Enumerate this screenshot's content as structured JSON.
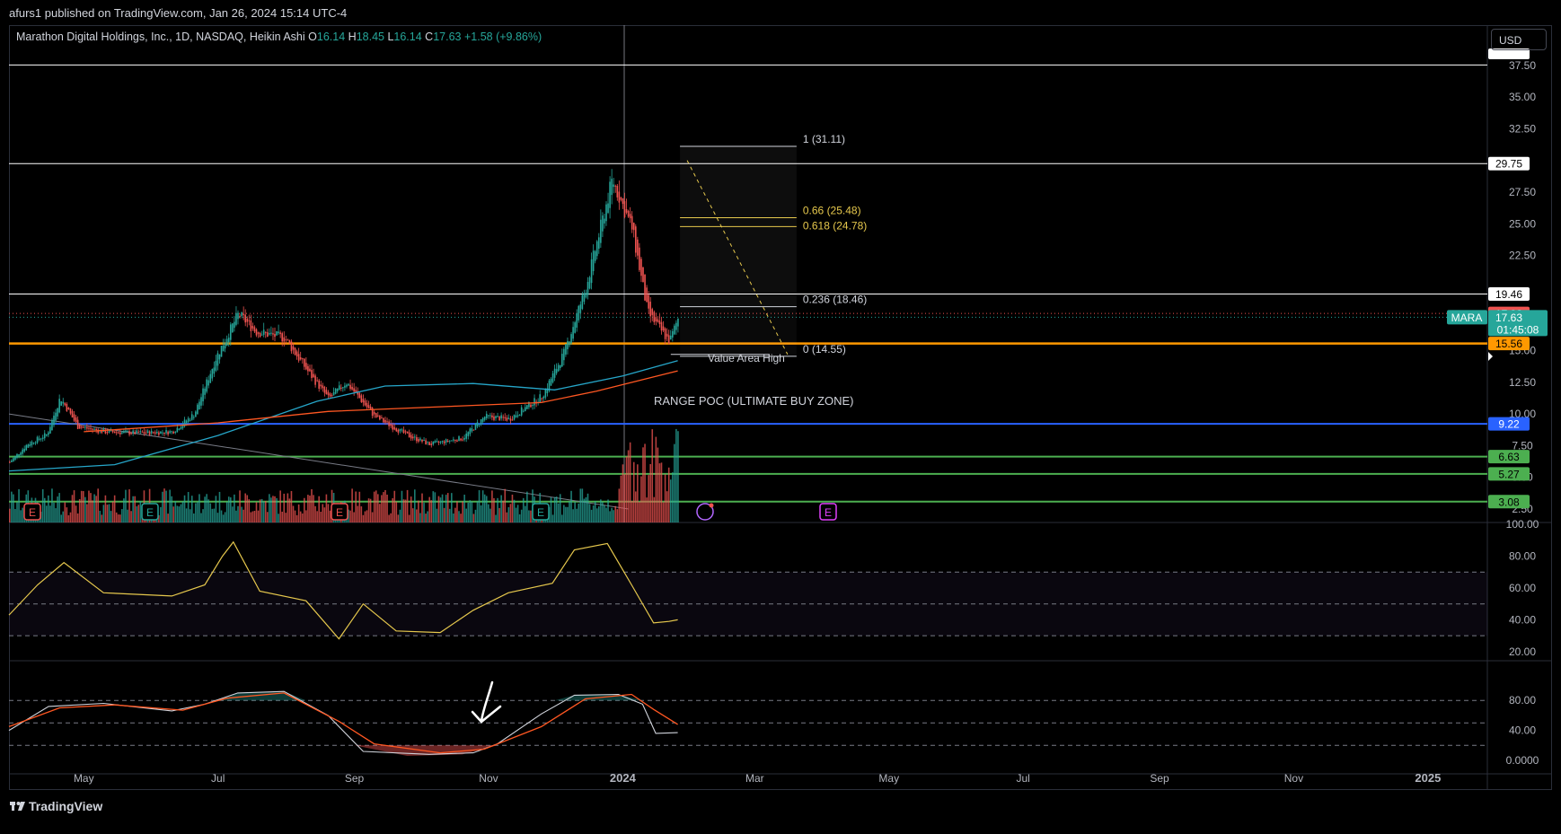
{
  "header": {
    "publisher": "afurs1 published on TradingView.com, Jan 26, 2024 15:14 UTC-4"
  },
  "legend": {
    "title": "Marathon Digital Holdings, Inc., 1D, NASDAQ, Heikin Ashi",
    "o_label": "O",
    "o": "16.14",
    "h_label": "H",
    "h": "18.45",
    "l_label": "L",
    "l": "16.14",
    "c_label": "C",
    "c": "17.63",
    "change": "+1.58 (+9.86%)"
  },
  "currency_button": "USD",
  "footer": {
    "brand": "TradingView",
    "logo_icon": "tradingview-logo-icon"
  },
  "colors": {
    "up": "#26a69a",
    "down": "#ef5350",
    "rsi": "#e6c84d",
    "orange": "#ff9800",
    "blue": "#2962ff",
    "green": "#4caf50",
    "fib": "#e6c84d",
    "stoch_k": "#d1d4dc",
    "stoch_d": "#ff5722"
  },
  "chart_data": [
    {
      "type": "candlestick",
      "title": "Marathon Digital Holdings, Inc., 1D, NASDAQ, Heikin Ashi",
      "symbol": "MARA",
      "x_ticks": [
        "May",
        "Jul",
        "Sep",
        "Nov",
        "2024",
        "Mar",
        "May",
        "Jul",
        "Sep",
        "Nov",
        "2025"
      ],
      "y_ticks": [
        "2.50",
        "5.00",
        "7.50",
        "10.00",
        "12.50",
        "15.00",
        "17.50",
        "22.50",
        "25.00",
        "27.50",
        "32.50",
        "35.00",
        "37.50"
      ],
      "ylim": [
        2.5,
        37.5
      ],
      "close_series": [
        {
          "date": "2023-03-28",
          "value": 6.2
        },
        {
          "date": "2023-04-05",
          "value": 7.6
        },
        {
          "date": "2023-04-14",
          "value": 8.4
        },
        {
          "date": "2023-04-20",
          "value": 11.3
        },
        {
          "date": "2023-04-28",
          "value": 9.0
        },
        {
          "date": "2023-05-10",
          "value": 8.6
        },
        {
          "date": "2023-05-25",
          "value": 8.5
        },
        {
          "date": "2023-06-10",
          "value": 8.6
        },
        {
          "date": "2023-06-20",
          "value": 10.0
        },
        {
          "date": "2023-06-30",
          "value": 14.5
        },
        {
          "date": "2023-07-10",
          "value": 17.9
        },
        {
          "date": "2023-07-18",
          "value": 16.5
        },
        {
          "date": "2023-07-31",
          "value": 16.0
        },
        {
          "date": "2023-08-10",
          "value": 13.5
        },
        {
          "date": "2023-08-20",
          "value": 11.2
        },
        {
          "date": "2023-08-28",
          "value": 12.5
        },
        {
          "date": "2023-09-10",
          "value": 9.8
        },
        {
          "date": "2023-09-25",
          "value": 8.3
        },
        {
          "date": "2023-10-05",
          "value": 7.6
        },
        {
          "date": "2023-10-20",
          "value": 8.1
        },
        {
          "date": "2023-10-30",
          "value": 9.8
        },
        {
          "date": "2023-11-10",
          "value": 9.6
        },
        {
          "date": "2023-11-25",
          "value": 11.4
        },
        {
          "date": "2023-12-05",
          "value": 14.8
        },
        {
          "date": "2023-12-15",
          "value": 20.0
        },
        {
          "date": "2023-12-27",
          "value": 28.5
        },
        {
          "date": "2024-01-05",
          "value": 24.6
        },
        {
          "date": "2024-01-12",
          "value": 18.0
        },
        {
          "date": "2024-01-22",
          "value": 15.7
        },
        {
          "date": "2024-01-26",
          "value": 17.63
        }
      ],
      "horizontal_levels": [
        {
          "value": 37.53,
          "color": "#ffffff"
        },
        {
          "value": 29.75,
          "color": "#ffffff"
        },
        {
          "value": 19.46,
          "color": "#ffffff"
        },
        {
          "value": 17.93,
          "color": "#ef5350"
        },
        {
          "value": 15.56,
          "color": "#ff9800"
        },
        {
          "value": 9.22,
          "color": "#2962ff"
        },
        {
          "value": 6.63,
          "color": "#4caf50"
        },
        {
          "value": 5.27,
          "color": "#4caf50"
        },
        {
          "value": 3.08,
          "color": "#4caf50"
        }
      ],
      "price_labels": [
        "29.75",
        "19.46",
        "17.93",
        "15.56",
        "9.22",
        "6.63",
        "5.27",
        "3.08"
      ],
      "last_price": {
        "symbol": "MARA",
        "value": "17.63",
        "countdown": "01:45:08"
      },
      "fibonacci": [
        {
          "label": "1 (31.11)",
          "value": 31.11
        },
        {
          "label": "0.66 (25.48)",
          "value": 25.48
        },
        {
          "label": "0.618 (24.78)",
          "value": 24.78
        },
        {
          "label": "0.236 (18.46)",
          "value": 18.46
        },
        {
          "label": "0 (14.55)",
          "value": 14.55
        }
      ],
      "annotations": [
        "RANGE POC (ULTIMATE BUY ZONE)",
        "Value Area High"
      ],
      "earnings_markers": [
        "E",
        "E",
        "E",
        "E",
        "E"
      ]
    },
    {
      "type": "line",
      "name": "RSI",
      "y_ticks": [
        "100.00",
        "80.00",
        "60.00",
        "40.00",
        "20.00"
      ],
      "ylim": [
        15,
        100
      ],
      "bands": [
        70,
        50,
        30
      ]
    },
    {
      "type": "line",
      "name": "Stochastic",
      "y_ticks": [
        "80.00",
        "40.00",
        "0.0000"
      ],
      "ylim": [
        0,
        100
      ],
      "bands": [
        80,
        50,
        20
      ]
    }
  ]
}
